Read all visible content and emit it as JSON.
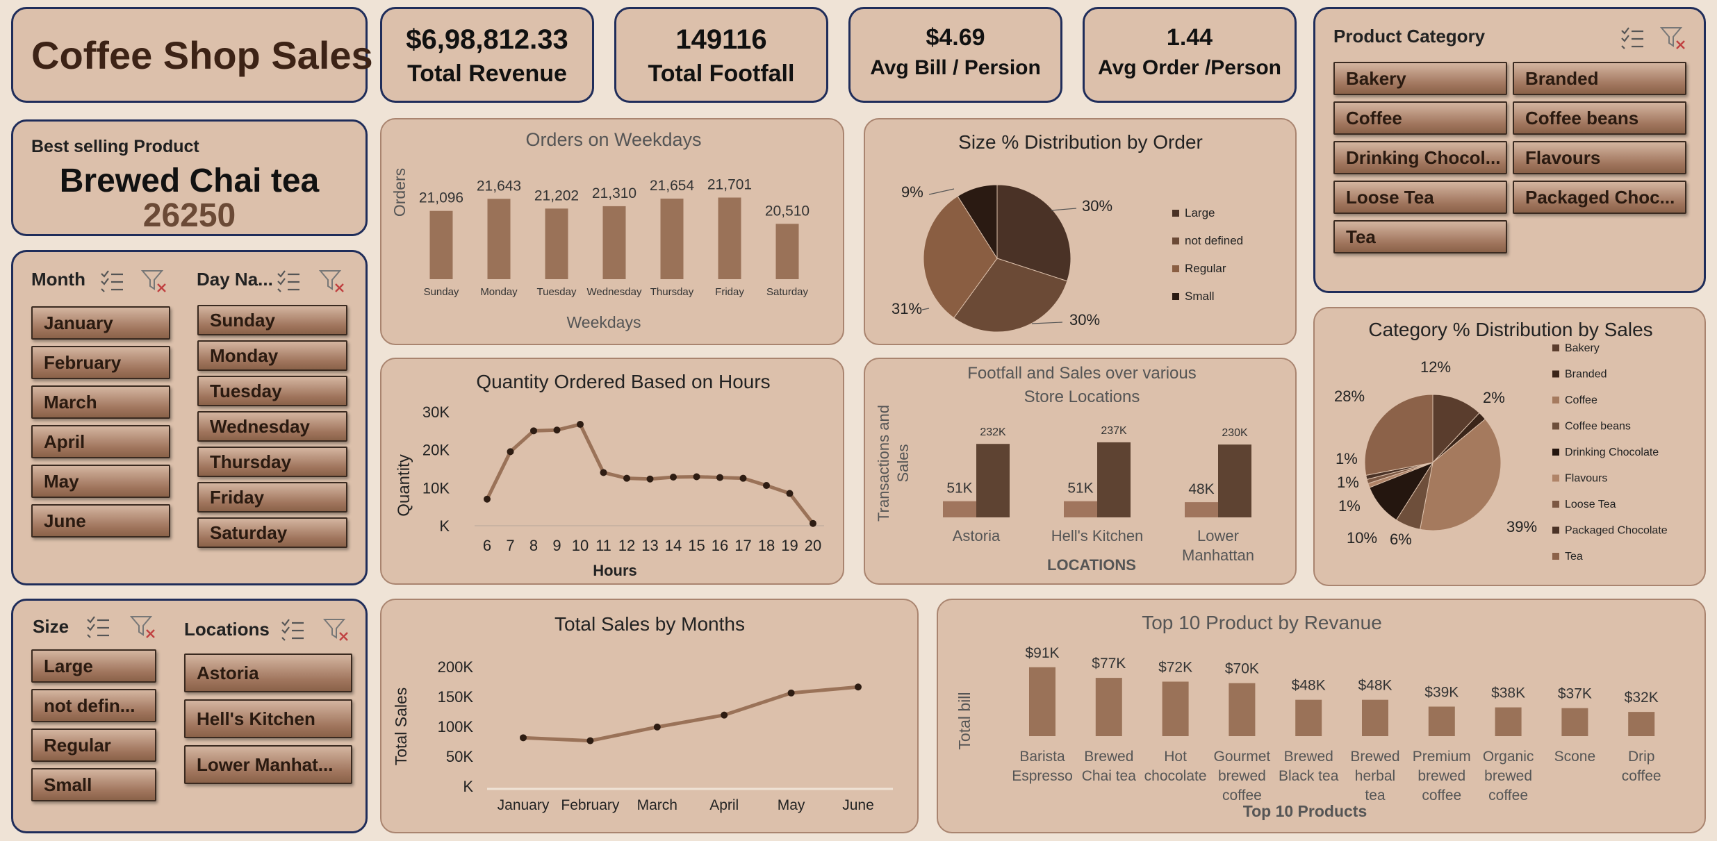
{
  "title": "Coffee Shop Sales",
  "kpis": {
    "revenue": {
      "value": "$6,98,812.33",
      "label": "Total Revenue"
    },
    "footfall": {
      "value": "149116",
      "label": "Total Footfall"
    },
    "avg_bill": {
      "value": "$4.69",
      "label": "Avg Bill / Persion"
    },
    "avg_order": {
      "value": "1.44",
      "label": "Avg Order /Person"
    }
  },
  "best_selling": {
    "label": "Best selling Product",
    "product": "Brewed Chai tea",
    "qty": "26250"
  },
  "slicers": {
    "month": {
      "title": "Month",
      "items": [
        "January",
        "February",
        "March",
        "April",
        "May",
        "June"
      ]
    },
    "day": {
      "title": "Day Na...",
      "items": [
        "Sunday",
        "Monday",
        "Tuesday",
        "Wednesday",
        "Thursday",
        "Friday",
        "Saturday"
      ]
    },
    "size": {
      "title": "Size",
      "items": [
        "Large",
        "not defin...",
        "Regular",
        "Small"
      ]
    },
    "locations": {
      "title": "Locations",
      "items": [
        "Astoria",
        "Hell's Kitchen",
        "Lower Manhat..."
      ]
    },
    "category": {
      "title": "Product Category",
      "items": [
        "Bakery",
        "Branded",
        "Coffee",
        "Coffee beans",
        "Drinking Chocol...",
        "Flavours",
        "Loose Tea",
        "Packaged Choc...",
        "Tea"
      ]
    }
  },
  "colors": {
    "dark": "#4a3226",
    "mid": "#6b4a36",
    "light": "#a0755d",
    "bar": "#9a7258",
    "panel": "#dcc0ab",
    "navy": "#1f2d5a"
  },
  "chart_data": [
    {
      "id": "weekdays",
      "type": "bar",
      "title": "Orders on Weekdays",
      "xlabel": "Weekdays",
      "ylabel": "Orders",
      "categories": [
        "Sunday",
        "Monday",
        "Tuesday",
        "Wednesday",
        "Thursday",
        "Friday",
        "Saturday"
      ],
      "values": [
        21096,
        21643,
        21202,
        21310,
        21654,
        21701,
        20510
      ],
      "labels": [
        "21,096",
        "21,643",
        "21,202",
        "21,310",
        "21,654",
        "21,701",
        "20,510"
      ]
    },
    {
      "id": "size",
      "type": "pie",
      "title": "Size % Distribution by Order",
      "slices": [
        {
          "name": "Large",
          "value": 30,
          "label": "30%",
          "color": "#4a3226"
        },
        {
          "name": "not defined",
          "value": 30,
          "label": "30%",
          "color": "#6b4a36"
        },
        {
          "name": "Regular",
          "value": 31,
          "label": "31%",
          "color": "#8a5e42"
        },
        {
          "name": "Small",
          "value": 9,
          "label": "9%",
          "color": "#2a1a12"
        }
      ]
    },
    {
      "id": "hours",
      "type": "line",
      "title": "Quantity Ordered Based on Hours",
      "xlabel": "Hours",
      "ylabel": "Quantity",
      "x": [
        6,
        7,
        8,
        9,
        10,
        11,
        12,
        13,
        14,
        15,
        16,
        17,
        18,
        19,
        20
      ],
      "values": [
        7000,
        19500,
        25000,
        25200,
        26700,
        14000,
        12500,
        12300,
        12800,
        12900,
        12700,
        12500,
        10600,
        8500,
        600
      ],
      "ylim": [
        0,
        30000
      ],
      "yticks": [
        "30K",
        "20K",
        "10K",
        "K"
      ]
    },
    {
      "id": "locations",
      "type": "bar",
      "title": "Footfall and Sales over various Store Locations",
      "xlabel": "LOCATIONS",
      "ylabel": "Transactions and Sales",
      "categories": [
        "Astoria",
        "Hell's Kitchen",
        "Lower Manhattan"
      ],
      "series": [
        {
          "values": [
            51000,
            51000,
            48000
          ],
          "labels": [
            "51K",
            "51K",
            "48K"
          ],
          "color": "#a0755d"
        },
        {
          "values": [
            232000,
            237000,
            230000
          ],
          "labels": [
            "232K",
            "237K",
            "230K"
          ],
          "color": "#5e4332"
        }
      ]
    },
    {
      "id": "category",
      "type": "pie",
      "title": "Category % Distribution by Sales",
      "slices": [
        {
          "name": "Bakery",
          "value": 12,
          "label": "12%",
          "color": "#5a3d2d"
        },
        {
          "name": "Branded",
          "value": 2,
          "label": "2%",
          "color": "#3a2519"
        },
        {
          "name": "Coffee",
          "value": 39,
          "label": "39%",
          "color": "#a57a5e"
        },
        {
          "name": "Coffee beans",
          "value": 6,
          "label": "6%",
          "color": "#6e4f3b"
        },
        {
          "name": "Drinking Chocolate",
          "value": 10,
          "label": "10%",
          "color": "#24160f"
        },
        {
          "name": "Flavours",
          "value": 1,
          "label": "1%",
          "color": "#b08468"
        },
        {
          "name": "Loose Tea",
          "value": 1,
          "label": "1%",
          "color": "#7c5843"
        },
        {
          "name": "Packaged Chocolate",
          "value": 1,
          "label": "1%",
          "color": "#4a3226"
        },
        {
          "name": "Tea",
          "value": 28,
          "label": "28%",
          "color": "#8c6249"
        }
      ]
    },
    {
      "id": "months",
      "type": "line",
      "title": "Total Sales by Months",
      "ylabel": "Total Sales",
      "categories": [
        "January",
        "February",
        "March",
        "April",
        "May",
        "June"
      ],
      "values": [
        81000,
        76000,
        99000,
        119000,
        156000,
        166000
      ],
      "ylim": [
        0,
        200000
      ],
      "yticks": [
        "200K",
        "150K",
        "100K",
        "50K",
        "K"
      ]
    },
    {
      "id": "top10",
      "type": "bar",
      "title": "Top 10 Product by Revanue",
      "xlabel": "Top 10 Products",
      "ylabel": "Total bill",
      "categories": [
        "Barista Espresso",
        "Brewed Chai tea",
        "Hot chocolate",
        "Gourmet brewed coffee",
        "Brewed Black tea",
        "Brewed herbal tea",
        "Premium brewed coffee",
        "Organic brewed coffee",
        "Scone",
        "Drip coffee"
      ],
      "category_lines": [
        [
          "Barista",
          "Espresso"
        ],
        [
          "Brewed",
          "Chai tea"
        ],
        [
          "Hot",
          "chocolate"
        ],
        [
          "Gourmet",
          "brewed",
          "coffee"
        ],
        [
          "Brewed",
          "Black tea"
        ],
        [
          "Brewed",
          "herbal",
          "tea"
        ],
        [
          "Premium",
          "brewed",
          "coffee"
        ],
        [
          "Organic",
          "brewed",
          "coffee"
        ],
        [
          "Scone"
        ],
        [
          "Drip",
          "coffee"
        ]
      ],
      "values": [
        91000,
        77000,
        72000,
        70000,
        48000,
        48000,
        39000,
        38000,
        37000,
        32000
      ],
      "labels": [
        "$91K",
        "$77K",
        "$72K",
        "$70K",
        "$48K",
        "$48K",
        "$39K",
        "$38K",
        "$37K",
        "$32K"
      ]
    }
  ]
}
